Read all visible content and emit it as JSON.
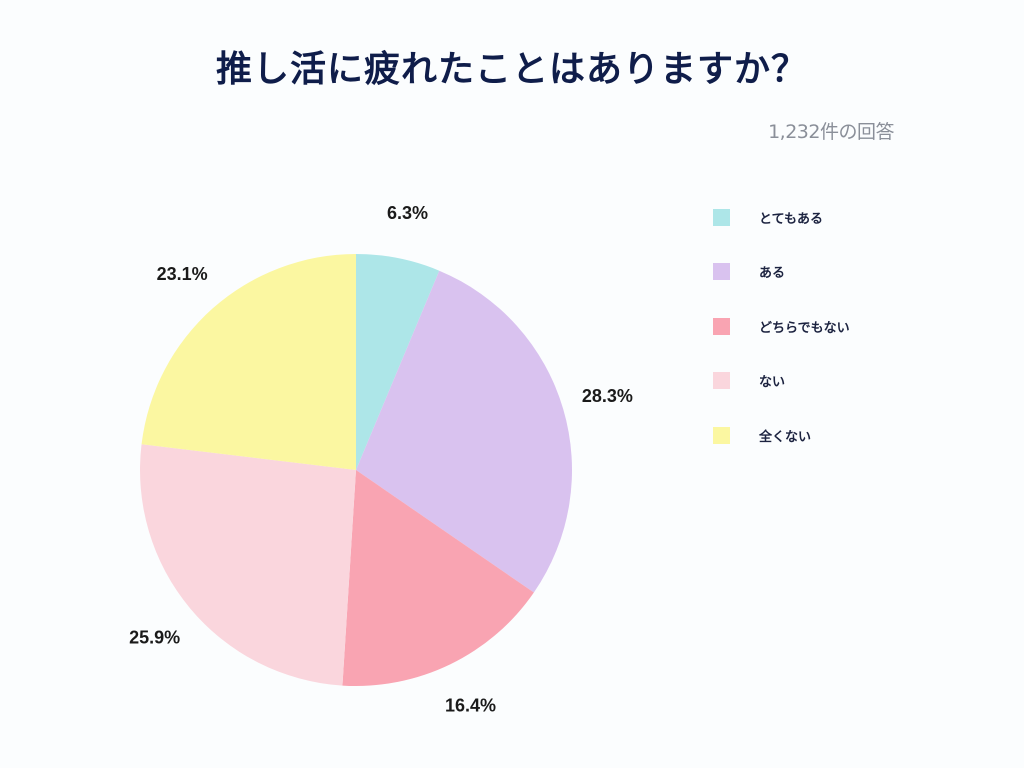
{
  "title": "推し活に疲れたことはありますか？",
  "subtitle": "1,232件の回答",
  "chart_data": {
    "type": "pie",
    "title": "推し活に疲れたことはありますか？",
    "subtitle": "1,232件の回答",
    "total_responses": 1232,
    "legend_position": "right",
    "slices": [
      {
        "label": "とてもある",
        "value": 6.3,
        "display": "6.3%",
        "color": "#ade6e8"
      },
      {
        "label": "ある",
        "value": 28.3,
        "display": "28.3%",
        "color": "#d9c2ef"
      },
      {
        "label": "どちらでもない",
        "value": 16.4,
        "display": "16.4%",
        "color": "#f9a4b2"
      },
      {
        "label": "ない",
        "value": 25.9,
        "display": "25.9%",
        "color": "#fad6dd"
      },
      {
        "label": "全くない",
        "value": 23.1,
        "display": "23.1%",
        "color": "#fbf7a1"
      }
    ]
  }
}
